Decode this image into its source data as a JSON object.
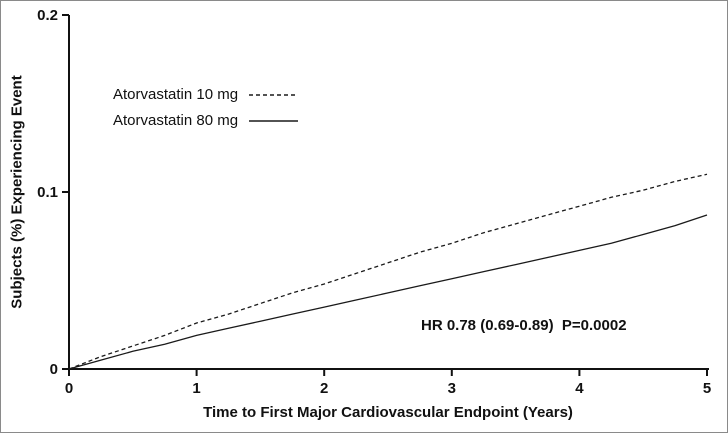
{
  "chart_data": {
    "type": "line",
    "title": "",
    "xlabel": "Time to First Major Cardiovascular Endpoint (Years)",
    "ylabel": "Subjects (%) Experiencing Event",
    "xlim": [
      0,
      5
    ],
    "ylim": [
      0,
      0.2
    ],
    "x_ticks": [
      0,
      1,
      2,
      3,
      4,
      5
    ],
    "x_tick_labels": [
      "0",
      "1",
      "2",
      "3",
      "4",
      "5"
    ],
    "y_ticks": [
      0,
      0.1,
      0.2
    ],
    "y_tick_labels": [
      "0",
      "0.1",
      "0.2"
    ],
    "grid": false,
    "legend_position": "upper-left-inside",
    "line_color": "#1a1a1a",
    "annotation": "HR 0.78 (0.69-0.89)  P=0.0002",
    "x": [
      0,
      0.25,
      0.5,
      0.75,
      1,
      1.25,
      1.5,
      1.75,
      2,
      2.25,
      2.5,
      2.75,
      3,
      3.25,
      3.5,
      3.75,
      4,
      4.25,
      4.5,
      4.75,
      5
    ],
    "series": [
      {
        "name": "Atorvastatin 10 mg",
        "style": "dashed",
        "values": [
          0,
          0.007,
          0.013,
          0.019,
          0.026,
          0.031,
          0.037,
          0.043,
          0.048,
          0.054,
          0.06,
          0.066,
          0.071,
          0.077,
          0.082,
          0.087,
          0.092,
          0.097,
          0.101,
          0.106,
          0.11
        ]
      },
      {
        "name": "Atorvastatin 80 mg",
        "style": "solid",
        "values": [
          0,
          0.005,
          0.01,
          0.014,
          0.019,
          0.023,
          0.027,
          0.031,
          0.035,
          0.039,
          0.043,
          0.047,
          0.051,
          0.055,
          0.059,
          0.063,
          0.067,
          0.071,
          0.076,
          0.081,
          0.087
        ]
      }
    ]
  }
}
